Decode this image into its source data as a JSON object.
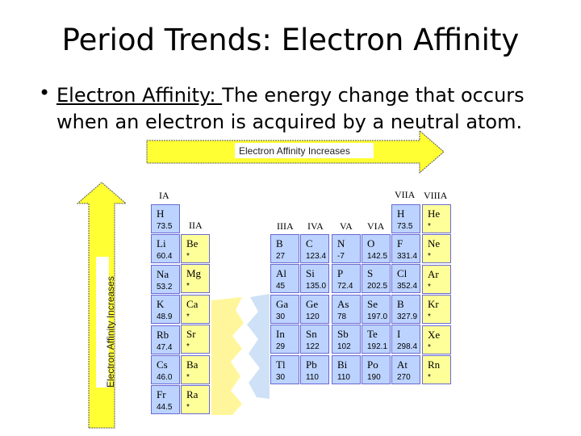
{
  "title": "Period Trends:  Electron Affinity",
  "bullet": {
    "term": "Electron Affinity: ",
    "definition": " The energy change that occurs when an electron is acquired by a neutral atom."
  },
  "arrows": {
    "horizontal_label": "Electron Affinity Increases",
    "vertical_label": "Electron Affinity Increases",
    "color": "#ffff33"
  },
  "table": {
    "group_labels": {
      "IA": "IA",
      "IIA": "IIA",
      "IIIA": "IIIA",
      "IVA": "IVA",
      "VA": "VA",
      "VIA": "VIA",
      "VIIA": "VIIA",
      "VIIIA": "VIIIA"
    },
    "IA": [
      {
        "symbol": "H",
        "value": "73.5"
      },
      {
        "symbol": "Li",
        "value": "60.4"
      },
      {
        "symbol": "Na",
        "value": "53.2"
      },
      {
        "symbol": "K",
        "value": "48.9"
      },
      {
        "symbol": "Rb",
        "value": "47.4"
      },
      {
        "symbol": "Cs",
        "value": "46.0"
      },
      {
        "symbol": "Fr",
        "value": "44.5"
      }
    ],
    "IIA": [
      {
        "symbol": "Be",
        "value": "*"
      },
      {
        "symbol": "Mg",
        "value": "*"
      },
      {
        "symbol": "Ca",
        "value": "*"
      },
      {
        "symbol": "Sr",
        "value": "*"
      },
      {
        "symbol": "Ba",
        "value": "*"
      },
      {
        "symbol": "Ra",
        "value": "*"
      }
    ],
    "VIIA_H": {
      "symbol": "H",
      "value": "73.5"
    },
    "p_block": [
      [
        {
          "symbol": "B",
          "value": "27"
        },
        {
          "symbol": "C",
          "value": "123.4"
        },
        {
          "symbol": "N",
          "value": "-7"
        },
        {
          "symbol": "O",
          "value": "142.5"
        },
        {
          "symbol": "F",
          "value": "331.4"
        }
      ],
      [
        {
          "symbol": "Al",
          "value": "45"
        },
        {
          "symbol": "Si",
          "value": "135.0"
        },
        {
          "symbol": "P",
          "value": "72.4"
        },
        {
          "symbol": "S",
          "value": "202.5"
        },
        {
          "symbol": "Cl",
          "value": "352.4"
        }
      ],
      [
        {
          "symbol": "Ga",
          "value": "30"
        },
        {
          "symbol": "Ge",
          "value": "120"
        },
        {
          "symbol": "As",
          "value": "78"
        },
        {
          "symbol": "Se",
          "value": "197.0"
        },
        {
          "symbol": "B",
          "value": "327.9"
        }
      ],
      [
        {
          "symbol": "In",
          "value": "29"
        },
        {
          "symbol": "Sn",
          "value": "122"
        },
        {
          "symbol": "Sb",
          "value": "102"
        },
        {
          "symbol": "Te",
          "value": "192.1"
        },
        {
          "symbol": "I",
          "value": "298.4"
        }
      ],
      [
        {
          "symbol": "Tl",
          "value": "30"
        },
        {
          "symbol": "Pb",
          "value": "110"
        },
        {
          "symbol": "Bi",
          "value": "110"
        },
        {
          "symbol": "Po",
          "value": "190"
        },
        {
          "symbol": "At",
          "value": "270"
        }
      ]
    ],
    "VIIIA": [
      {
        "symbol": "He",
        "value": "*"
      },
      {
        "symbol": "Ne",
        "value": "*"
      },
      {
        "symbol": "Ar",
        "value": "*"
      },
      {
        "symbol": "Kr",
        "value": "*"
      },
      {
        "symbol": "Xe",
        "value": "*"
      },
      {
        "symbol": "Rn",
        "value": "*"
      }
    ],
    "colors": {
      "s_p_cells": "#bcd3ff",
      "noble_and_IIA": "#ffff9a",
      "border": "#6a6ad4"
    }
  }
}
